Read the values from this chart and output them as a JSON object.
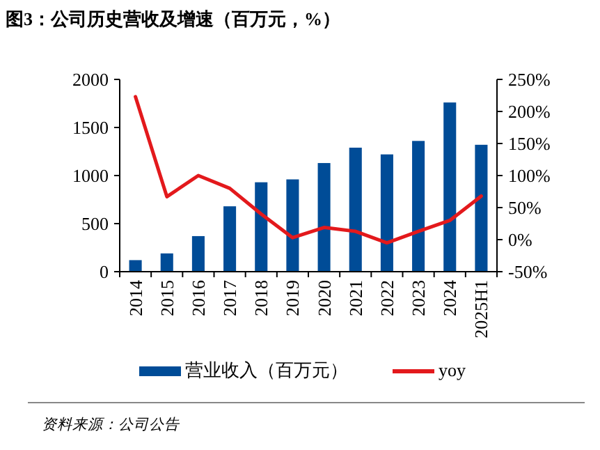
{
  "chart_data": {
    "type": "bar",
    "title": "图3：公司历史营收及增速（百万元，%）",
    "categories": [
      "2014",
      "2015",
      "2016",
      "2017",
      "2018",
      "2019",
      "2020",
      "2021",
      "2022",
      "2023",
      "2024",
      "2025H1"
    ],
    "series": [
      {
        "name": "营业收入（百万元）",
        "color": "#004c97",
        "values": [
          120,
          190,
          370,
          680,
          930,
          960,
          1130,
          1290,
          1220,
          1360,
          1760,
          1320
        ]
      },
      {
        "name": "yoy",
        "type": "line",
        "axis": "y2",
        "color": "#e3191c",
        "values": [
          223,
          67,
          100,
          80,
          40,
          3,
          19,
          13,
          -5,
          13,
          30,
          68
        ]
      }
    ],
    "ylim": [
      0,
      2000
    ],
    "yticks": [
      0,
      500,
      1000,
      1500,
      2000
    ],
    "y2lim": [
      -50,
      250
    ],
    "y2ticks": [
      {
        "value": -50,
        "label": "-50%"
      },
      {
        "value": 0,
        "label": "0%"
      },
      {
        "value": 50,
        "label": "50%"
      },
      {
        "value": 100,
        "label": "100%"
      },
      {
        "value": 150,
        "label": "150%"
      },
      {
        "value": 200,
        "label": "200%"
      },
      {
        "value": 250,
        "label": "250%"
      }
    ],
    "legend": "bottom",
    "grid": false,
    "annotations": [
      "资料来源：公司公告"
    ]
  }
}
